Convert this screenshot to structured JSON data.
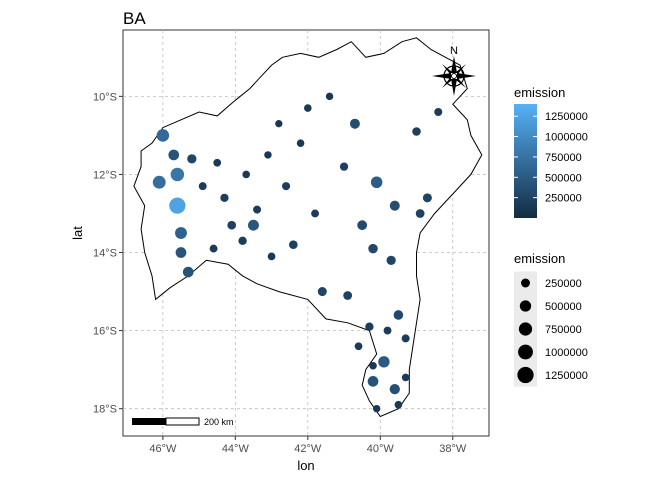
{
  "chart_data": {
    "type": "scatter",
    "title": "BA",
    "xlabel": "lon",
    "ylabel": "lat",
    "xlim": [
      -47.1,
      -37.0
    ],
    "ylim": [
      -18.7,
      -8.3
    ],
    "x_ticks": [
      {
        "value": -46,
        "label": "46°W"
      },
      {
        "value": -44,
        "label": "44°W"
      },
      {
        "value": -42,
        "label": "42°W"
      },
      {
        "value": -40,
        "label": "40°W"
      },
      {
        "value": -38,
        "label": "38°W"
      }
    ],
    "y_ticks": [
      {
        "value": -10,
        "label": "10°S"
      },
      {
        "value": -12,
        "label": "12°S"
      },
      {
        "value": -14,
        "label": "14°S"
      },
      {
        "value": -16,
        "label": "16°S"
      },
      {
        "value": -18,
        "label": "18°S"
      }
    ],
    "grid": true,
    "legend": {
      "color": {
        "title": "emission",
        "type": "colorbar",
        "range": [
          0,
          1400000
        ],
        "low_color": "#132B43",
        "high_color": "#56B1F7",
        "breaks": [
          {
            "value": 250000,
            "label": "250000"
          },
          {
            "value": 500000,
            "label": "500000"
          },
          {
            "value": 750000,
            "label": "750000"
          },
          {
            "value": 1000000,
            "label": "1000000"
          },
          {
            "value": 1250000,
            "label": "1250000"
          }
        ]
      },
      "size": {
        "title": "emission",
        "breaks": [
          {
            "value": 250000,
            "label": "250000"
          },
          {
            "value": 500000,
            "label": "500000"
          },
          {
            "value": 750000,
            "label": "750000"
          },
          {
            "value": 1000000,
            "label": "1000000"
          },
          {
            "value": 1250000,
            "label": "1250000"
          }
        ]
      },
      "placement": "right"
    },
    "annotations": {
      "north_arrow": "N",
      "scale_bar": "200 km"
    },
    "boundary": [
      [
        -46.6,
        -11.4
      ],
      [
        -46.3,
        -11.2
      ],
      [
        -46.0,
        -10.8
      ],
      [
        -45.5,
        -10.6
      ],
      [
        -45.0,
        -10.4
      ],
      [
        -44.5,
        -10.5
      ],
      [
        -44.0,
        -10.1
      ],
      [
        -43.6,
        -9.8
      ],
      [
        -43.3,
        -9.5
      ],
      [
        -43.0,
        -9.2
      ],
      [
        -42.7,
        -9.0
      ],
      [
        -42.2,
        -8.9
      ],
      [
        -41.7,
        -9.0
      ],
      [
        -41.2,
        -8.8
      ],
      [
        -40.8,
        -8.6
      ],
      [
        -40.4,
        -9.0
      ],
      [
        -39.9,
        -8.9
      ],
      [
        -39.4,
        -8.6
      ],
      [
        -39.0,
        -8.5
      ],
      [
        -38.6,
        -8.8
      ],
      [
        -38.2,
        -9.0
      ],
      [
        -37.8,
        -9.2
      ],
      [
        -37.6,
        -9.8
      ],
      [
        -38.0,
        -10.2
      ],
      [
        -37.6,
        -10.6
      ],
      [
        -37.5,
        -11.0
      ],
      [
        -37.2,
        -11.5
      ],
      [
        -37.5,
        -12.0
      ],
      [
        -38.0,
        -12.5
      ],
      [
        -38.5,
        -13.0
      ],
      [
        -38.9,
        -13.5
      ],
      [
        -39.0,
        -14.0
      ],
      [
        -39.0,
        -14.6
      ],
      [
        -38.9,
        -15.2
      ],
      [
        -39.0,
        -15.8
      ],
      [
        -39.1,
        -16.4
      ],
      [
        -39.2,
        -17.0
      ],
      [
        -39.2,
        -17.6
      ],
      [
        -39.5,
        -18.0
      ],
      [
        -40.0,
        -18.2
      ],
      [
        -40.3,
        -17.8
      ],
      [
        -40.5,
        -17.4
      ],
      [
        -40.4,
        -17.0
      ],
      [
        -40.1,
        -16.6
      ],
      [
        -40.3,
        -16.0
      ],
      [
        -40.9,
        -15.8
      ],
      [
        -41.5,
        -15.7
      ],
      [
        -42.0,
        -15.2
      ],
      [
        -42.8,
        -15.0
      ],
      [
        -43.4,
        -14.8
      ],
      [
        -43.8,
        -14.6
      ],
      [
        -44.2,
        -14.3
      ],
      [
        -44.8,
        -14.2
      ],
      [
        -45.3,
        -14.6
      ],
      [
        -45.8,
        -14.9
      ],
      [
        -46.2,
        -15.2
      ],
      [
        -46.3,
        -14.6
      ],
      [
        -46.5,
        -14.0
      ],
      [
        -46.6,
        -13.4
      ],
      [
        -46.5,
        -12.8
      ],
      [
        -46.8,
        -12.3
      ],
      [
        -46.6,
        -11.8
      ]
    ],
    "points": [
      [
        -46.0,
        -11.0,
        650000
      ],
      [
        -45.7,
        -11.5,
        420000
      ],
      [
        -45.6,
        -12.0,
        780000
      ],
      [
        -46.1,
        -12.2,
        700000
      ],
      [
        -45.6,
        -12.8,
        1250000
      ],
      [
        -45.5,
        -13.5,
        560000
      ],
      [
        -45.5,
        -14.0,
        430000
      ],
      [
        -45.3,
        -14.5,
        420000
      ],
      [
        -45.2,
        -11.6,
        280000
      ],
      [
        -44.9,
        -12.3,
        180000
      ],
      [
        -44.5,
        -11.7,
        160000
      ],
      [
        -44.3,
        -12.6,
        200000
      ],
      [
        -44.1,
        -13.3,
        230000
      ],
      [
        -43.8,
        -13.7,
        210000
      ],
      [
        -43.5,
        -13.3,
        450000
      ],
      [
        -43.0,
        -14.1,
        160000
      ],
      [
        -42.4,
        -13.8,
        230000
      ],
      [
        -40.7,
        -10.7,
        350000
      ],
      [
        -40.1,
        -12.2,
        520000
      ],
      [
        -42.0,
        -10.3,
        150000
      ],
      [
        -39.9,
        -16.8,
        500000
      ],
      [
        -40.2,
        -17.3,
        420000
      ],
      [
        -39.6,
        -17.5,
        380000
      ],
      [
        -40.2,
        -13.9,
        300000
      ],
      [
        -39.7,
        -14.2,
        280000
      ],
      [
        -41.6,
        -15.0,
        260000
      ],
      [
        -40.9,
        -15.1,
        240000
      ],
      [
        -39.5,
        -15.6,
        310000
      ],
      [
        -40.5,
        -13.3,
        330000
      ],
      [
        -39.6,
        -12.8,
        350000
      ],
      [
        -38.7,
        -12.6,
        260000
      ],
      [
        -38.9,
        -13.0,
        240000
      ],
      [
        -39.0,
        -10.9,
        220000
      ],
      [
        -38.4,
        -10.4,
        180000
      ],
      [
        -41.0,
        -11.8,
        200000
      ],
      [
        -42.6,
        -12.3,
        190000
      ],
      [
        -43.4,
        -12.9,
        180000
      ],
      [
        -41.8,
        -13.0,
        170000
      ],
      [
        -40.3,
        -15.9,
        200000
      ],
      [
        -39.3,
        -16.2,
        180000
      ],
      [
        -40.6,
        -16.4,
        160000
      ],
      [
        -39.8,
        -16.0,
        170000
      ],
      [
        -40.2,
        -16.9,
        150000
      ],
      [
        -39.5,
        -17.9,
        160000
      ],
      [
        -40.1,
        -18.0,
        140000
      ],
      [
        -39.3,
        -17.2,
        150000
      ],
      [
        -43.7,
        -12.0,
        150000
      ],
      [
        -43.1,
        -11.5,
        140000
      ],
      [
        -42.8,
        -10.7,
        130000
      ],
      [
        -44.6,
        -13.9,
        170000
      ],
      [
        -42.2,
        -11.2,
        150000
      ],
      [
        -41.4,
        -10.0,
        140000
      ]
    ],
    "point_field": "[lon, lat, emission]"
  }
}
